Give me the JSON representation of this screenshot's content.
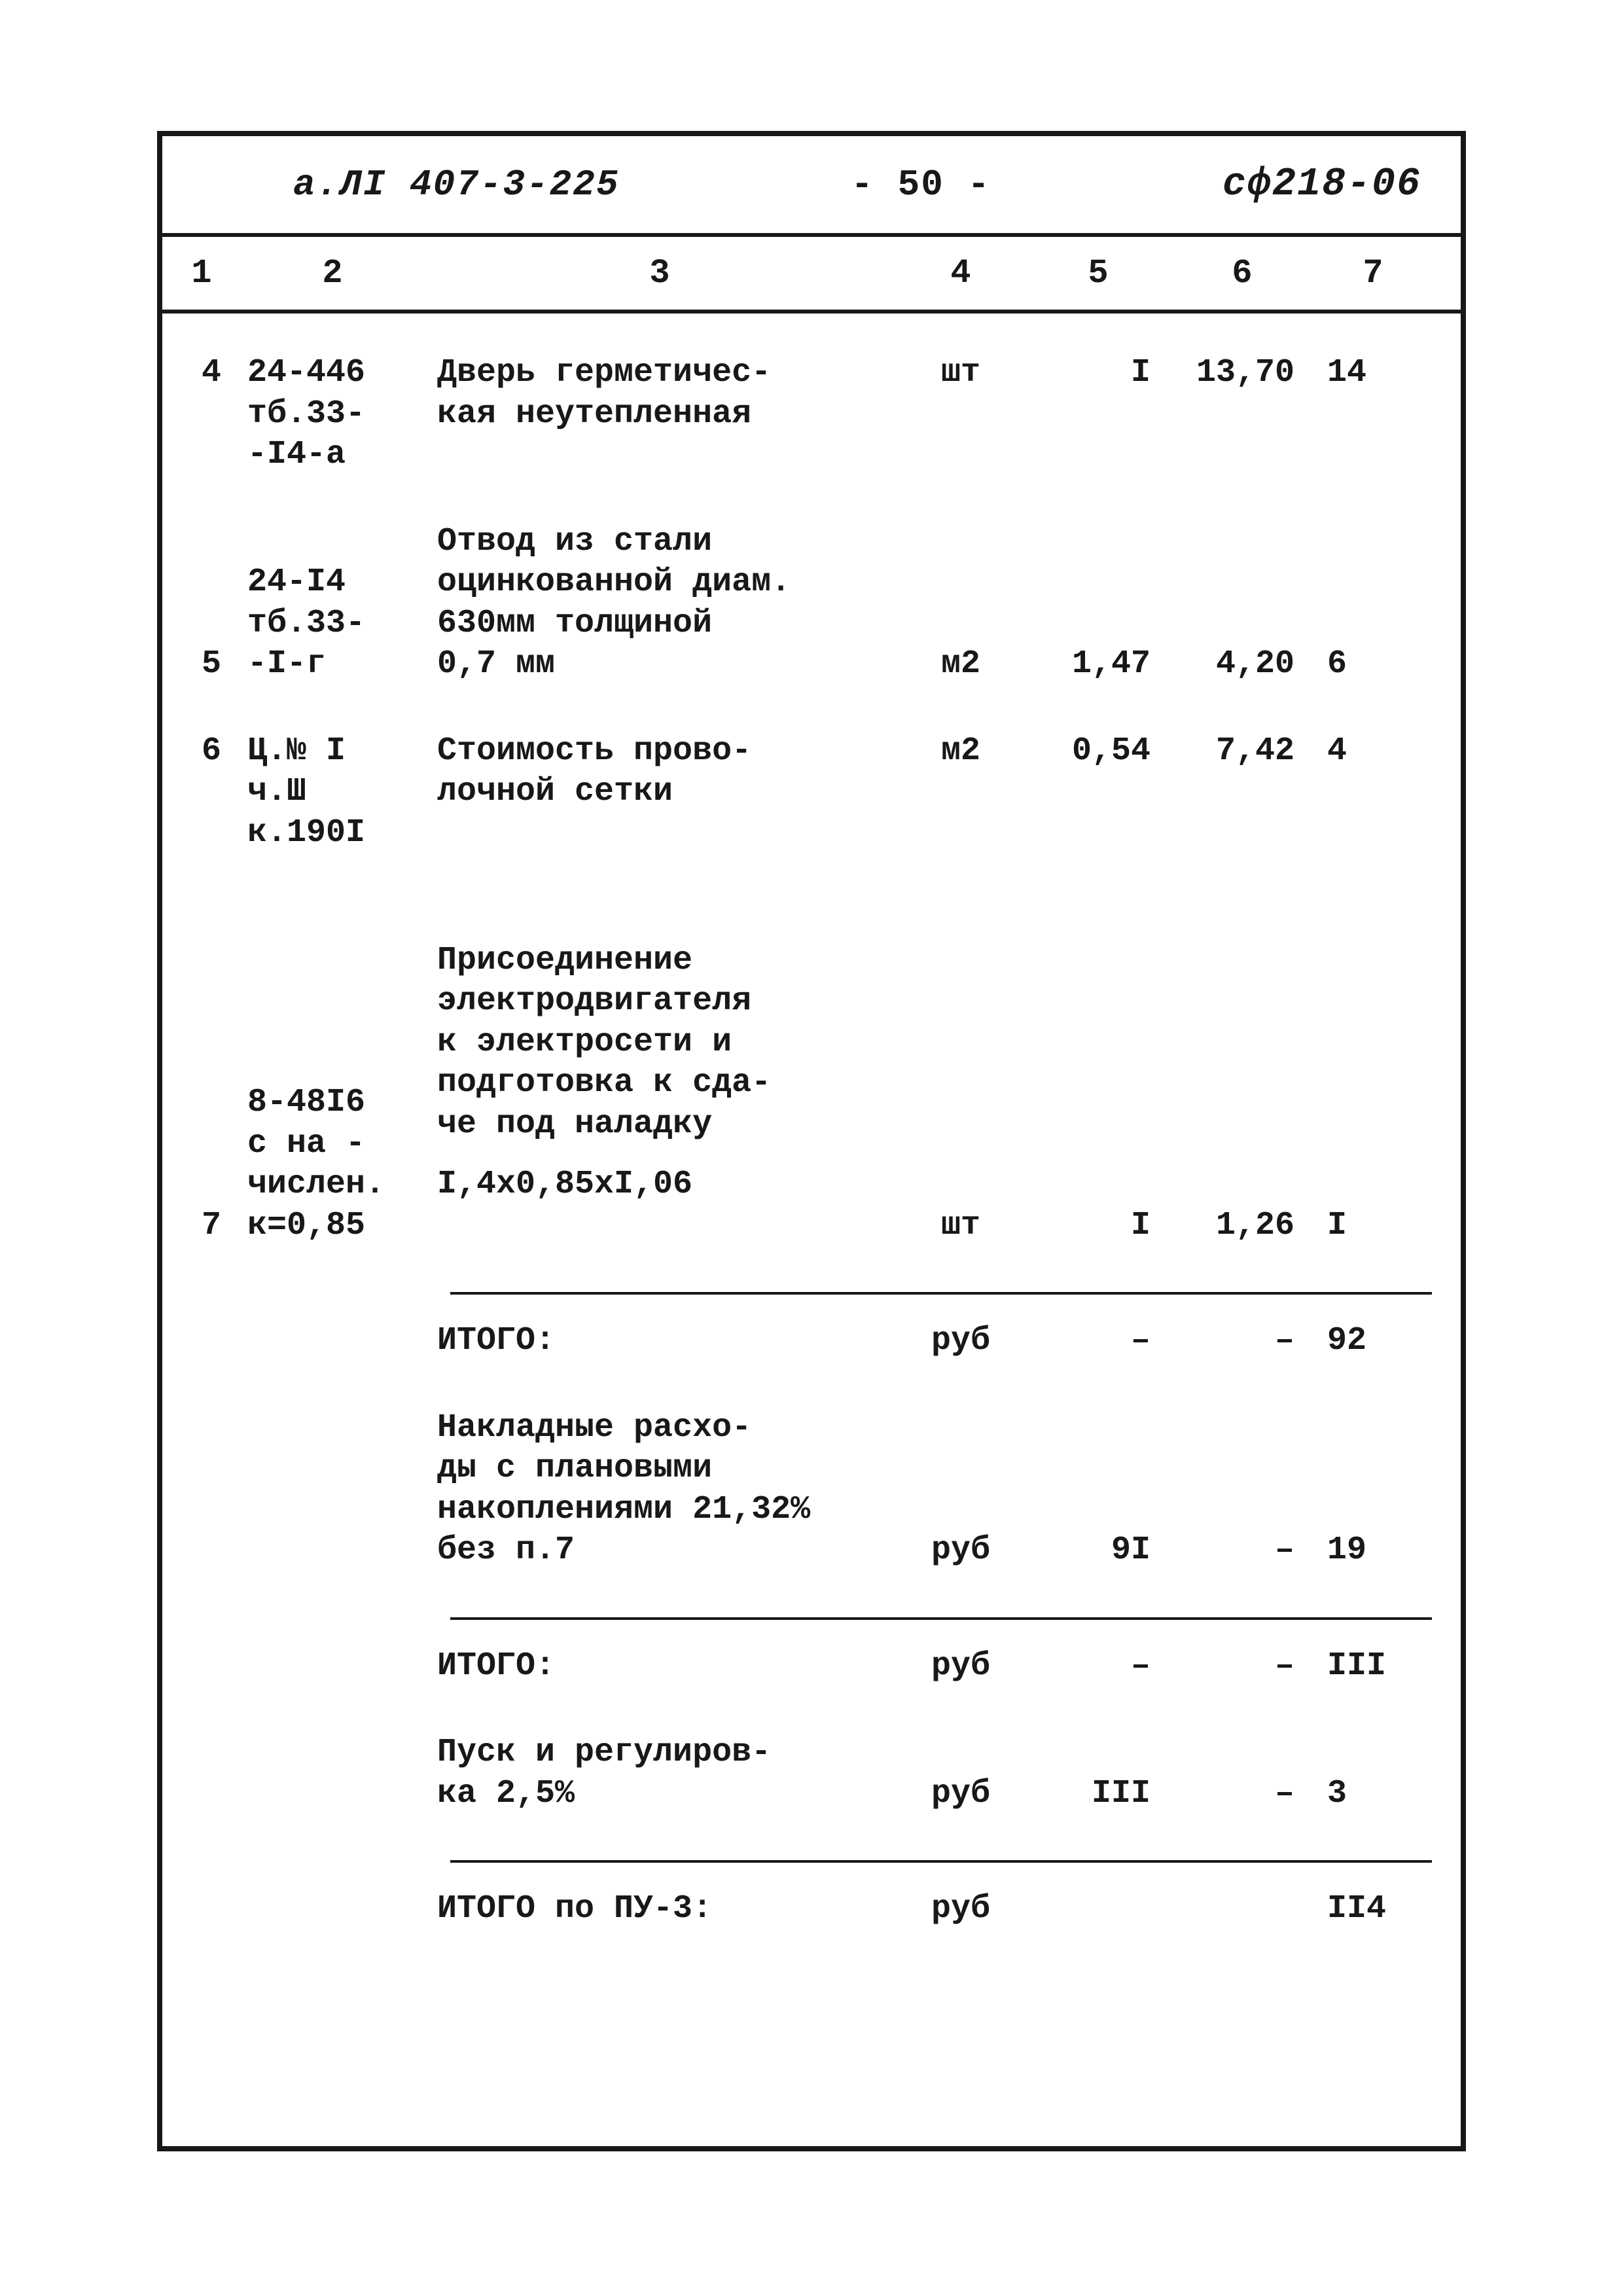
{
  "header": {
    "left": "а.ЛІ 407-3-225",
    "center": "- 50 -",
    "right": "сф218-06"
  },
  "columns": [
    "1",
    "2",
    "3",
    "4",
    "5",
    "6",
    "7"
  ],
  "rows": [
    {
      "n": "4",
      "code": "24-446\nтб.33-\n-І4-а",
      "desc": "Дверь герметичес-\nкая неутепленная",
      "unit": "шт",
      "qty": "І",
      "price": "13,70",
      "sum": "14"
    },
    {
      "n": "5",
      "code": "24-І4\nтб.33-\n-І-г",
      "desc": "Отвод из стали\nоцинкованной диам.\n630мм толщиной\n0,7 мм",
      "unit": "м2",
      "qty": "1,47",
      "price": "4,20",
      "sum": "6"
    },
    {
      "n": "6",
      "code": "Ц.№ І\nч.Ш\nк.190І",
      "desc": "Стоимость прово-\nлочной сетки",
      "unit": "м2",
      "qty": "0,54",
      "price": "7,42",
      "sum": "4"
    },
    {
      "n": "7",
      "code": "8-48І6\nс на -\nчислен.\nк=0,85",
      "desc": "Присоединение\nэлектродвигателя\nк электросети и\nподготовка к сда-\nче под наладку",
      "calc": "І,4х0,85хІ,06",
      "unit": "шт",
      "qty": "І",
      "price": "1,26",
      "sum": "І"
    }
  ],
  "totals": [
    {
      "desc": "ИТОГО:",
      "unit": "руб",
      "qty": "–",
      "price": "–",
      "sum": "92",
      "rule_before": true
    },
    {
      "desc": "Накладные расхо-\nды с плановыми\nнакоплениями 21,32%\nбез п.7",
      "unit": "руб",
      "qty": "9І",
      "price": "–",
      "sum": "19"
    },
    {
      "desc": "ИТОГО:",
      "unit": "руб",
      "qty": "–",
      "price": "–",
      "sum": "ІІІ",
      "rule_before": true
    },
    {
      "desc": "Пуск и регулиров-\nка 2,5%",
      "unit": "руб",
      "qty": "ІІІ",
      "price": "–",
      "sum": "3"
    },
    {
      "desc": "ИТОГО по ПУ-3:",
      "unit": "руб",
      "qty": "",
      "price": "",
      "sum": "ІІ4",
      "rule_before": true
    }
  ],
  "style": {
    "border_color": "#1a1816",
    "page_bg": "#ffffff",
    "font": "Courier New",
    "base_fontsize_pt": 50
  }
}
